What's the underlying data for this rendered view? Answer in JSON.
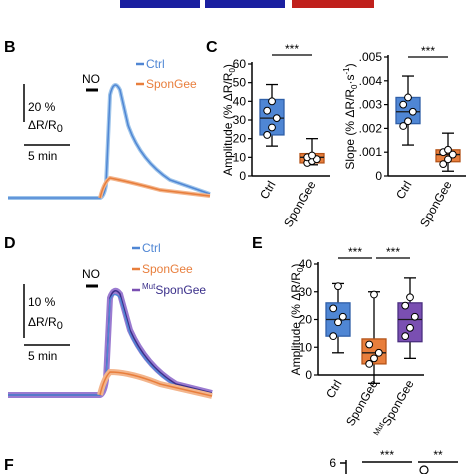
{
  "panel_labels": {
    "B": "B",
    "C": "C",
    "D": "D",
    "E": "E",
    "F": "F"
  },
  "colors": {
    "ctrl": "#4f86d4",
    "ctrl_light": "#9ec4ea",
    "spongee": "#e87e3c",
    "spongee_light": "#f3b58c",
    "mut": "#7a4fb2",
    "mut_dark": "#3a2f8a",
    "banner_blue": "#1a1fa0",
    "banner_red": "#c0201c"
  },
  "chart_data": [
    {
      "panel": "B",
      "type": "line",
      "stimulus_label": "NO",
      "scalebar": {
        "y_text": "20 %",
        "y_unit_text": "ΔR/R",
        "y_unit_sub": "0",
        "x_text": "5 min"
      },
      "series": [
        {
          "name": "Ctrl",
          "color": "#4f86d4"
        },
        {
          "name": "SponGee",
          "color": "#e87e3c"
        }
      ]
    },
    {
      "panel": "C",
      "type": "box",
      "ylabel": "Amplitude (% ΔR/R",
      "ylabel_sub": "0",
      "ylabel_end": ")",
      "ylim": [
        0,
        60
      ],
      "yticks": [
        "0",
        "10",
        "20",
        "30",
        "40",
        "50",
        "60"
      ],
      "categories": [
        "Ctrl",
        "SponGee"
      ],
      "significance": [
        "***"
      ],
      "series": [
        {
          "name": "Ctrl",
          "min": 16,
          "q1": 22,
          "median": 31,
          "q3": 41,
          "max": 49,
          "points": [
            22,
            26,
            31,
            35,
            40
          ]
        },
        {
          "name": "SponGee",
          "min": 6,
          "q1": 7,
          "median": 10,
          "q3": 12,
          "max": 20,
          "points": [
            7,
            8,
            9,
            10,
            11
          ]
        }
      ]
    },
    {
      "panel": "C",
      "type": "box",
      "ylabel": "Slope (% ΔR/R",
      "ylabel_sub": "0",
      "ylabel_end": "·s",
      "ylabel_sup": "-1",
      "ylabel_close": ")",
      "ylim": [
        0,
        0.005
      ],
      "yticks": [
        "0",
        ".001",
        ".002",
        ".003",
        ".004",
        ".005"
      ],
      "categories": [
        "Ctrl",
        "SponGee"
      ],
      "significance": [
        "***"
      ],
      "series": [
        {
          "name": "Ctrl",
          "min": 0.0013,
          "q1": 0.0022,
          "median": 0.0027,
          "q3": 0.0033,
          "max": 0.0042,
          "points": [
            0.0021,
            0.0023,
            0.0027,
            0.003,
            0.0033
          ]
        },
        {
          "name": "SponGee",
          "min": 0.0002,
          "q1": 0.0006,
          "median": 0.0009,
          "q3": 0.0011,
          "max": 0.0018,
          "points": [
            0.0005,
            0.0007,
            0.0009,
            0.001,
            0.0011
          ]
        }
      ]
    },
    {
      "panel": "D",
      "type": "line",
      "stimulus_label": "NO",
      "scalebar": {
        "y_text": "10 %",
        "y_unit_text": "ΔR/R",
        "y_unit_sub": "0",
        "x_text": "5 min"
      },
      "series": [
        {
          "name": "Ctrl",
          "color": "#4f86d4"
        },
        {
          "name": "SponGee",
          "color": "#e87e3c"
        },
        {
          "name": "SponGee",
          "prefix_sup": "Mut",
          "color": "#7a4fb2"
        }
      ]
    },
    {
      "panel": "E",
      "type": "box",
      "ylabel": "Amplitude (% ΔR/R",
      "ylabel_sub": "0",
      "ylabel_end": ")",
      "ylim": [
        0,
        40
      ],
      "yticks": [
        "0",
        "10",
        "20",
        "30",
        "40"
      ],
      "categories": [
        "Ctrl",
        "SponGee",
        "SponGee"
      ],
      "category_prefix_sup": [
        "",
        "",
        "Mut"
      ],
      "significance": [
        "***",
        "***"
      ],
      "series": [
        {
          "name": "Ctrl",
          "min": 8,
          "q1": 14,
          "median": 20,
          "q3": 26,
          "max": 33,
          "points": [
            14,
            19,
            21,
            24,
            32
          ]
        },
        {
          "name": "SponGee",
          "min": -3,
          "q1": 4,
          "median": 8,
          "q3": 13,
          "max": 30,
          "points": [
            4,
            6,
            8,
            11,
            29
          ]
        },
        {
          "name": "SponGee",
          "min": 6,
          "q1": 12,
          "median": 20,
          "q3": 26,
          "max": 35,
          "points": [
            14,
            17,
            21,
            25,
            28
          ]
        }
      ]
    },
    {
      "panel": "F",
      "type": "box",
      "yticks": [
        "6"
      ],
      "significance": [
        "***",
        "**"
      ]
    }
  ]
}
